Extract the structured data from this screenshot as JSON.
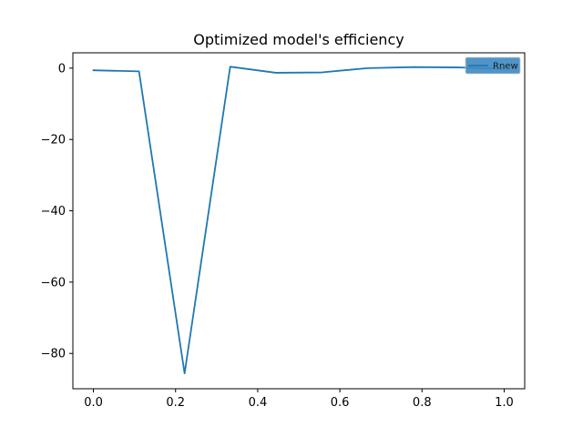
{
  "chart_data": {
    "type": "line",
    "title": "Optimized model's efficiency",
    "xlabel": "",
    "ylabel": "",
    "xlim": [
      -0.05,
      1.05
    ],
    "ylim": [
      -89.9,
      4.3
    ],
    "xticks": [
      0.0,
      0.2,
      0.4,
      0.6,
      0.8,
      1.0
    ],
    "xtick_labels": [
      "0.0",
      "0.2",
      "0.4",
      "0.6",
      "0.8",
      "1.0"
    ],
    "yticks": [
      0,
      -20,
      -40,
      -60,
      -80
    ],
    "ytick_labels": [
      "0",
      "−20",
      "−40",
      "−60",
      "−80"
    ],
    "grid": false,
    "legend": {
      "placement": "top-right",
      "background": "#3e88c2"
    },
    "series": [
      {
        "name": "Rnew",
        "color": "#1f77b4",
        "x": [
          0.0,
          0.111,
          0.222,
          0.333,
          0.444,
          0.556,
          0.667,
          0.778,
          0.889,
          1.0
        ],
        "y": [
          -0.6,
          -0.9,
          -85.6,
          0.4,
          -1.3,
          -1.2,
          0.0,
          0.3,
          0.2,
          -0.2
        ]
      }
    ]
  }
}
